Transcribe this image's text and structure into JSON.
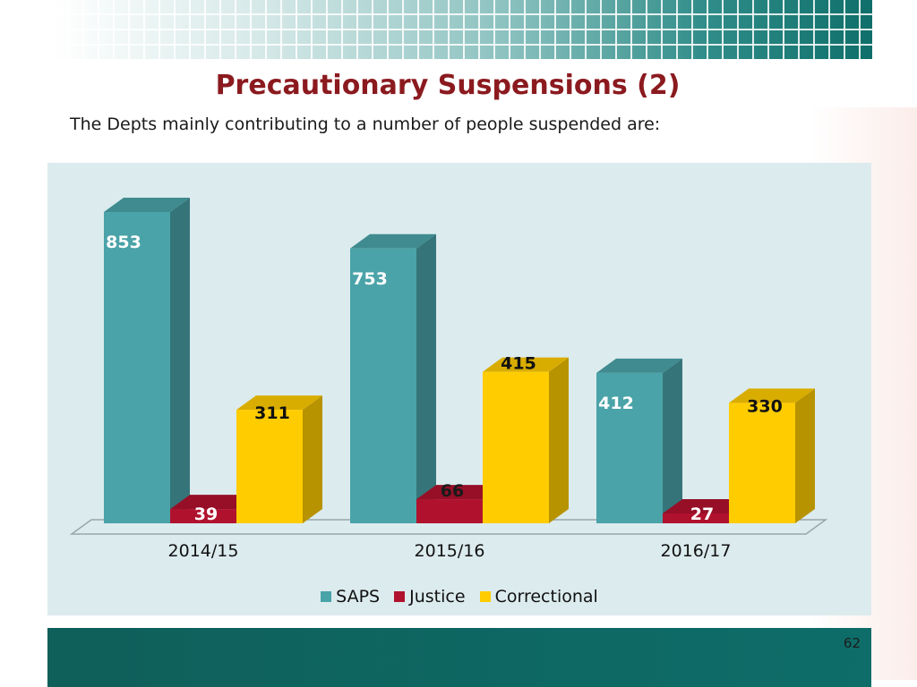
{
  "page": {
    "title": "Precautionary Suspensions (2)",
    "subtitle": "The Depts mainly contributing to a number of people suspended are:",
    "page_number": "62"
  },
  "colors": {
    "saps": "#4aa3a8",
    "justice": "#b0122e",
    "correctional": "#ffcc00",
    "panel_bg": "#dcebee",
    "title": "#8b1a1f",
    "band": "#0f5f5a"
  },
  "chart_data": {
    "type": "bar",
    "style": "3d-clustered-column",
    "categories": [
      "2014/15",
      "2015/16",
      "2016/17"
    ],
    "series": [
      {
        "name": "SAPS",
        "values": [
          853,
          753,
          412
        ]
      },
      {
        "name": "Justice",
        "values": [
          39,
          66,
          27
        ]
      },
      {
        "name": "Correctional",
        "values": [
          311,
          415,
          330
        ]
      }
    ],
    "data_labels": true,
    "legend_position": "bottom",
    "grid": false
  }
}
